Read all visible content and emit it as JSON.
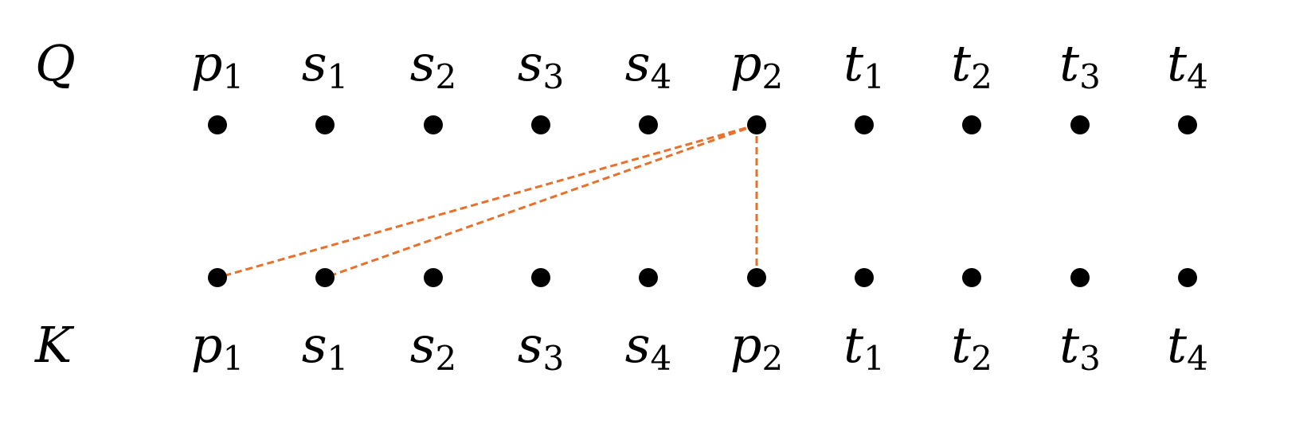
{
  "rows": {
    "query": {
      "label": "Q",
      "tokens": [
        {
          "base": "p",
          "sub": "1"
        },
        {
          "base": "s",
          "sub": "1"
        },
        {
          "base": "s",
          "sub": "2"
        },
        {
          "base": "s",
          "sub": "3"
        },
        {
          "base": "s",
          "sub": "4"
        },
        {
          "base": "p",
          "sub": "2"
        },
        {
          "base": "t",
          "sub": "1"
        },
        {
          "base": "t",
          "sub": "2"
        },
        {
          "base": "t",
          "sub": "3"
        },
        {
          "base": "t",
          "sub": "4"
        }
      ]
    },
    "key": {
      "label": "K",
      "tokens": [
        {
          "base": "p",
          "sub": "1"
        },
        {
          "base": "s",
          "sub": "1"
        },
        {
          "base": "s",
          "sub": "2"
        },
        {
          "base": "s",
          "sub": "3"
        },
        {
          "base": "s",
          "sub": "4"
        },
        {
          "base": "p",
          "sub": "2"
        },
        {
          "base": "t",
          "sub": "1"
        },
        {
          "base": "t",
          "sub": "2"
        },
        {
          "base": "t",
          "sub": "3"
        },
        {
          "base": "t",
          "sub": "4"
        }
      ]
    }
  },
  "connections": [
    {
      "from_query_index": 5,
      "to_key_index": 0
    },
    {
      "from_query_index": 5,
      "to_key_index": 1
    },
    {
      "from_query_index": 5,
      "to_key_index": 5
    }
  ],
  "colors": {
    "edge": "#E8702A",
    "dot": "#000000",
    "text": "#000000",
    "background": "#FFFFFF"
  }
}
